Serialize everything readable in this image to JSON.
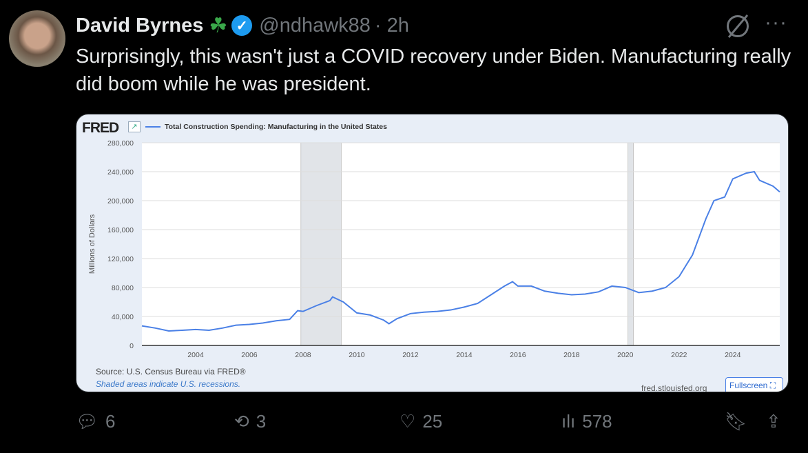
{
  "tweet": {
    "name": "David Byrnes",
    "clover": "☘",
    "handle": "@ndhawk88",
    "time": "· 2h",
    "text": "Surprisingly, this wasn't just a COVID recovery under Biden.  Manufacturing really did boom while he was president."
  },
  "card": {
    "logo": "FRED",
    "source": "Source: U.S. Census Bureau via FRED®",
    "shaded_note": "Shaded areas indicate U.S. recessions.",
    "url": "fred.stlouisfed.org",
    "fullscreen": "Fullscreen ⛶"
  },
  "actions": {
    "replies": "6",
    "retweets": "3",
    "likes": "25",
    "views": "578"
  },
  "chart_data": {
    "type": "line",
    "title": "Total Construction Spending: Manufacturing in the United States",
    "ylabel": "Millions of Dollars",
    "xlabel": "",
    "ylim": [
      0,
      280000
    ],
    "xlim": [
      2002,
      2025.75
    ],
    "yticks": [
      0,
      40000,
      80000,
      120000,
      160000,
      200000,
      240000,
      280000
    ],
    "ytick_labels": [
      "0",
      "40,000",
      "80,000",
      "120,000",
      "160,000",
      "200,000",
      "240,000",
      "280,000"
    ],
    "xticks": [
      2004,
      2006,
      2008,
      2010,
      2012,
      2014,
      2016,
      2018,
      2020,
      2022,
      2024
    ],
    "recessions": [
      [
        2007.92,
        2009.42
      ],
      [
        2020.1,
        2020.3
      ]
    ],
    "color": "#4a80e6",
    "series": [
      {
        "name": "Total Construction Spending: Manufacturing in the United States",
        "x": [
          2002,
          2002.5,
          2003,
          2003.5,
          2004,
          2004.5,
          2005,
          2005.5,
          2006,
          2006.5,
          2007,
          2007.5,
          2007.8,
          2008,
          2008.5,
          2009,
          2009.1,
          2009.5,
          2010,
          2010.5,
          2011,
          2011.2,
          2011.5,
          2012,
          2012.5,
          2013,
          2013.5,
          2014,
          2014.5,
          2015,
          2015.5,
          2015.8,
          2016,
          2016.5,
          2017,
          2017.5,
          2018,
          2018.5,
          2019,
          2019.5,
          2020,
          2020.5,
          2021,
          2021.5,
          2022,
          2022.5,
          2023,
          2023.3,
          2023.7,
          2024,
          2024.5,
          2024.8,
          2025,
          2025.5,
          2025.75
        ],
        "values": [
          27000,
          24000,
          20000,
          21000,
          22000,
          21000,
          24000,
          28000,
          29000,
          31000,
          34000,
          36000,
          48000,
          47000,
          55000,
          62000,
          67000,
          60000,
          45000,
          42000,
          35000,
          30000,
          37000,
          44000,
          46000,
          47000,
          49000,
          53000,
          58000,
          70000,
          82000,
          88000,
          82000,
          82000,
          75000,
          72000,
          70000,
          71000,
          74000,
          82000,
          80000,
          73000,
          75000,
          80000,
          95000,
          125000,
          175000,
          200000,
          205000,
          230000,
          238000,
          240000,
          228000,
          220000,
          212000
        ]
      }
    ]
  }
}
